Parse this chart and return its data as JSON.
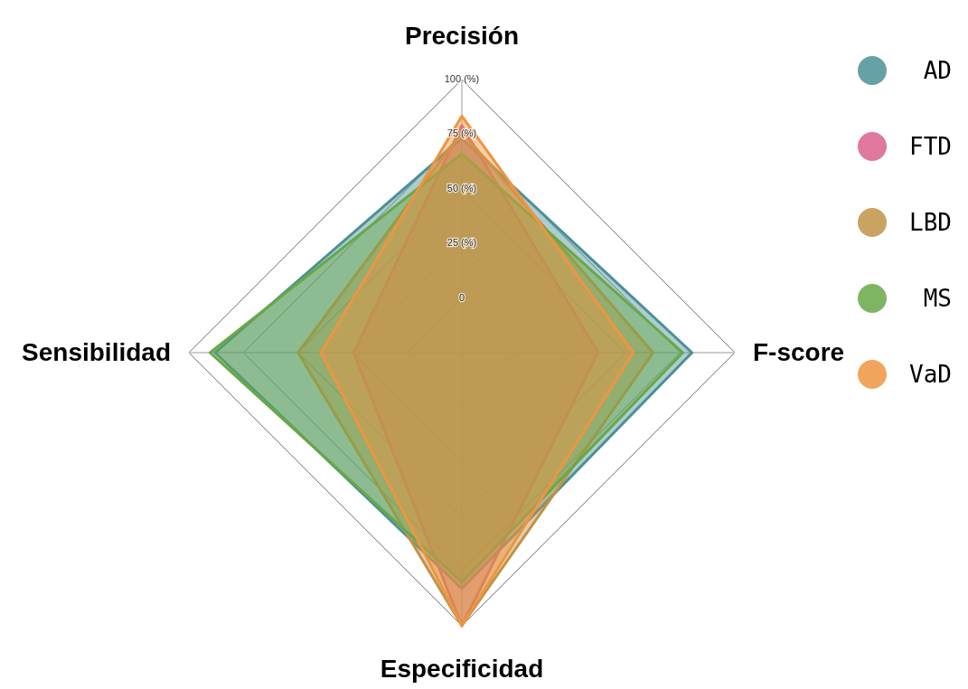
{
  "chart_data": {
    "type": "radar",
    "categories": [
      "Precisión",
      "F-score",
      "Especificidad",
      "Sensibilidad"
    ],
    "series": [
      {
        "name": "AD",
        "color": "#4b9196",
        "values": [
          73,
          80.4,
          83,
          88
        ]
      },
      {
        "name": "FTD",
        "color": "#d95f8e",
        "values": [
          79,
          37.4,
          100,
          24.6
        ]
      },
      {
        "name": "LBD",
        "color": "#bf9346",
        "values": [
          76,
          62.6,
          100,
          50
        ]
      },
      {
        "name": "MS",
        "color": "#68a846",
        "values": [
          66,
          76.2,
          80,
          90.3
        ]
      },
      {
        "name": "VaD",
        "color": "#ee9540",
        "values": [
          83.3,
          53.5,
          100,
          39.5
        ]
      }
    ],
    "ylim": [
      -25,
      100
    ],
    "yticks": [
      {
        "value": 0,
        "label": "0"
      },
      {
        "value": 25,
        "label": "25 (%)"
      },
      {
        "value": 50,
        "label": "50 (%)"
      },
      {
        "value": 75,
        "label": "75 (%)"
      },
      {
        "value": 100,
        "label": "100 (%)"
      }
    ],
    "grid": true,
    "legend": "right"
  }
}
